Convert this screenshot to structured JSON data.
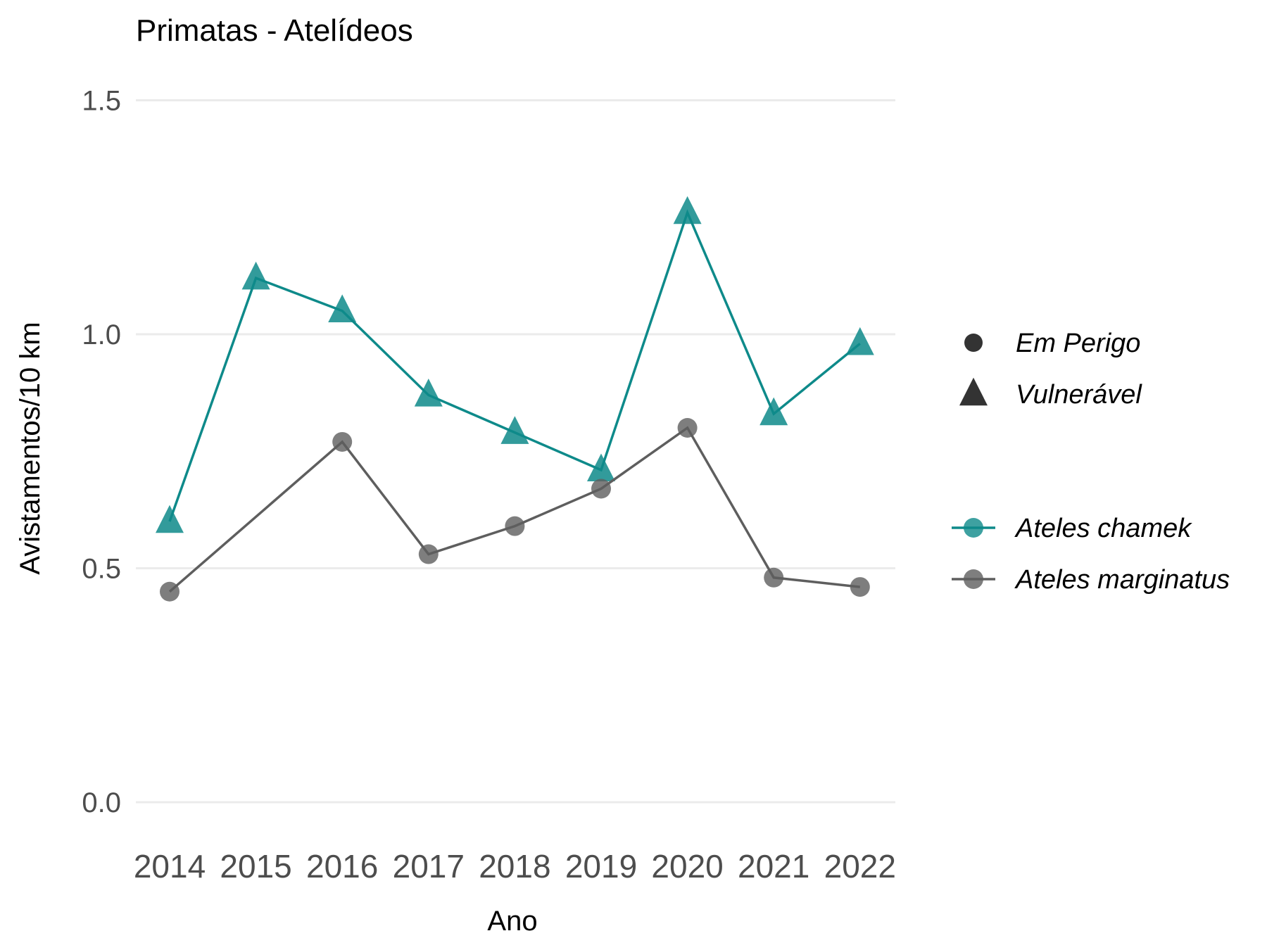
{
  "chart_data": {
    "type": "line",
    "title": "Primatas - Atelídeos",
    "xlabel": "Ano",
    "ylabel": "Avistamentos/10 km",
    "categories": [
      "2014",
      "2015",
      "2016",
      "2017",
      "2018",
      "2019",
      "2020",
      "2021",
      "2022"
    ],
    "ylim": [
      -0.05,
      1.6
    ],
    "yticks": [
      "0.0",
      "0.5",
      "1.0",
      "1.5"
    ],
    "ytick_values": [
      0,
      0.5,
      1.0,
      1.5
    ],
    "grid": "horizontal",
    "legend_position": "right",
    "series": [
      {
        "name": "Ateles chamek",
        "status": "Vulnerável",
        "marker": "triangle",
        "color": "#0e8a8a",
        "values": [
          0.6,
          1.12,
          1.05,
          0.87,
          0.79,
          0.71,
          1.26,
          0.83,
          0.98
        ]
      },
      {
        "name": "Ateles marginatus",
        "status": "Em Perigo",
        "marker": "circle",
        "color": "#5e5e5e",
        "values": [
          0.45,
          null,
          0.77,
          0.53,
          0.59,
          0.67,
          0.8,
          0.48,
          0.46
        ]
      }
    ],
    "legend": {
      "shape_entries": [
        {
          "label": "Em Perigo",
          "marker": "circle"
        },
        {
          "label": "Vulnerável",
          "marker": "triangle"
        }
      ],
      "color_entries": [
        {
          "label": "Ateles chamek",
          "color": "#0e8a8a"
        },
        {
          "label": "Ateles marginatus",
          "color": "#5e5e5e"
        }
      ]
    }
  }
}
